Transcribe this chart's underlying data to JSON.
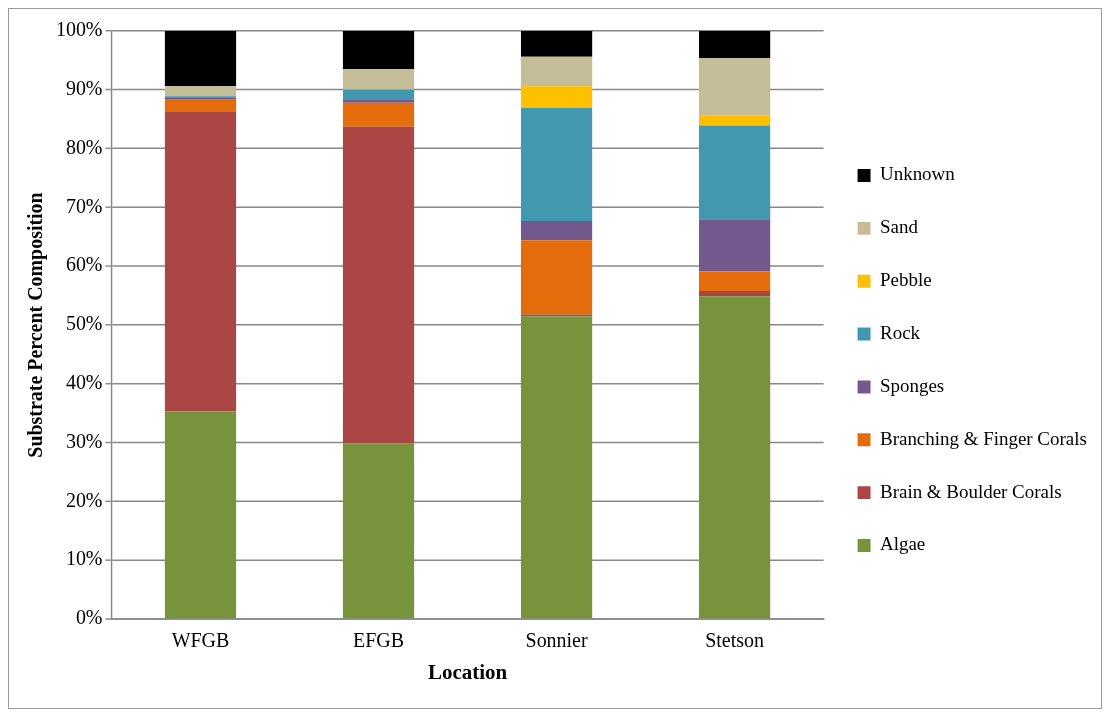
{
  "chart_data": {
    "type": "bar",
    "stacked": true,
    "xlabel": "Location",
    "ylabel": "Substrate Percent Composition",
    "categories": [
      "WFGB",
      "EFGB",
      "Sonnier",
      "Stetson"
    ],
    "series": [
      {
        "name": "Algae",
        "color": "#77933c",
        "values": [
          35.3,
          29.9,
          51.5,
          54.9
        ]
      },
      {
        "name": "Brain & Boulder Corals",
        "color": "#aa4744",
        "values": [
          50.9,
          53.8,
          0.3,
          0.9
        ]
      },
      {
        "name": "Branching & Finger Corals",
        "color": "#e46c0a",
        "values": [
          2.1,
          4.1,
          12.6,
          3.3
        ]
      },
      {
        "name": "Sponges",
        "color": "#725a8f",
        "values": [
          0.3,
          0.6,
          3.3,
          8.9
        ]
      },
      {
        "name": "Rock",
        "color": "#4198af",
        "values": [
          0.3,
          1.6,
          19.2,
          15.9
        ]
      },
      {
        "name": "Pebble",
        "color": "#ffc000",
        "values": [
          0,
          0,
          3.7,
          1.7
        ]
      },
      {
        "name": "Sand",
        "color": "#c4bd97",
        "values": [
          1.7,
          3.5,
          5.0,
          9.8
        ]
      },
      {
        "name": "Unknown",
        "color": "#000000",
        "values": [
          9.4,
          6.5,
          4.4,
          4.6
        ]
      }
    ],
    "ylim": [
      0,
      100
    ],
    "yticks": [
      {
        "value": 0,
        "label": "0%"
      },
      {
        "value": 10,
        "label": "10%"
      },
      {
        "value": 20,
        "label": "20%"
      },
      {
        "value": 30,
        "label": "30%"
      },
      {
        "value": 40,
        "label": "40%"
      },
      {
        "value": 50,
        "label": "50%"
      },
      {
        "value": 60,
        "label": "60%"
      },
      {
        "value": 70,
        "label": "70%"
      },
      {
        "value": 80,
        "label": "80%"
      },
      {
        "value": 90,
        "label": "90%"
      },
      {
        "value": 100,
        "label": "100%"
      }
    ],
    "grid": "y",
    "legend": "right"
  }
}
